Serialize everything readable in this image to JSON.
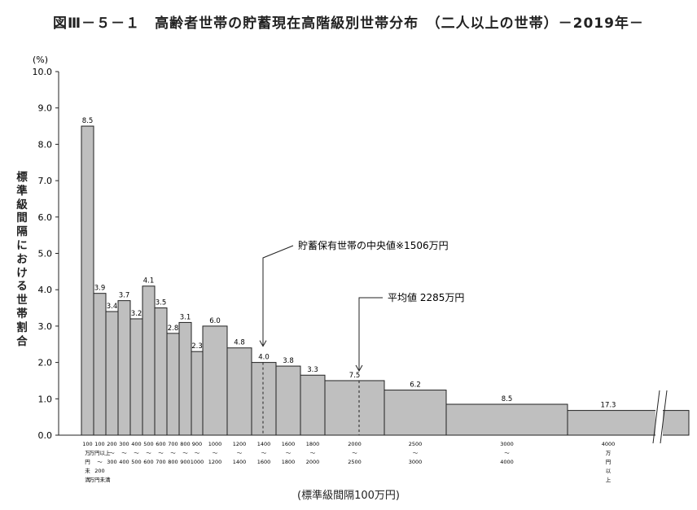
{
  "header": {
    "title": "図Ⅲ－５－１　高齢者世帯の貯蓄現在高階級別世帯分布　（二人以上の世帯）－2019年－"
  },
  "axis": {
    "y_unit": "(%)",
    "y_title": "標準級間隔における世帯割合",
    "x_title": "(標準級間隔100万円)"
  },
  "annotations": {
    "median": "貯蓄保有世帯の中央値※1506万円",
    "mean": "平均値 2285万円"
  },
  "chart_data": {
    "type": "bar",
    "title": "図Ⅲ－５－１　高齢者世帯の貯蓄現在高階級別世帯分布　（二人以上の世帯）－2019年－",
    "xlabel": "(標準級間隔100万円)",
    "ylabel": "標準級間隔における世帯割合 (%)",
    "ylim": [
      0,
      10
    ],
    "yticks": [
      "0.0",
      "1.0",
      "2.0",
      "3.0",
      "4.0",
      "5.0",
      "6.0",
      "7.0",
      "8.0",
      "9.0",
      "10.0"
    ],
    "x_scale": "in 100万円; broken beyond 4000万円",
    "grid": false,
    "bins": [
      {
        "from": 0,
        "to": 100,
        "value": 8.5,
        "label": "8.5",
        "tick": [
          "100",
          "万",
          "円",
          "未",
          "満"
        ]
      },
      {
        "from": 100,
        "to": 200,
        "value": 3.9,
        "label": "3.9",
        "tick": [
          "100",
          "万円以上",
          "～",
          "200",
          "万円未満"
        ]
      },
      {
        "from": 200,
        "to": 300,
        "value": 3.4,
        "label": "3.4",
        "tick": [
          "200",
          "～",
          "300"
        ]
      },
      {
        "from": 300,
        "to": 400,
        "value": 3.7,
        "label": "3.7",
        "tick": [
          "300",
          "～",
          "400"
        ]
      },
      {
        "from": 400,
        "to": 500,
        "value": 3.2,
        "label": "3.2",
        "tick": [
          "400",
          "～",
          "500"
        ]
      },
      {
        "from": 500,
        "to": 600,
        "value": 4.1,
        "label": "4.1",
        "tick": [
          "500",
          "～",
          "600"
        ]
      },
      {
        "from": 600,
        "to": 700,
        "value": 3.5,
        "label": "3.5",
        "tick": [
          "600",
          "～",
          "700"
        ]
      },
      {
        "from": 700,
        "to": 800,
        "value": 2.8,
        "label": "2.8",
        "tick": [
          "700",
          "～",
          "800"
        ]
      },
      {
        "from": 800,
        "to": 900,
        "value": 3.1,
        "label": "3.1",
        "tick": [
          "800",
          "～",
          "900"
        ]
      },
      {
        "from": 900,
        "to": 1000,
        "value": 2.3,
        "label": "2.3",
        "tick": [
          "900",
          "～",
          "1000"
        ]
      },
      {
        "from": 1000,
        "to": 1200,
        "value": 3.0,
        "label": "6.0",
        "tick": [
          "1000",
          "～",
          "1200"
        ]
      },
      {
        "from": 1200,
        "to": 1400,
        "value": 2.4,
        "label": "4.8",
        "tick": [
          "1200",
          "～",
          "1400"
        ]
      },
      {
        "from": 1400,
        "to": 1600,
        "value": 2.0,
        "label": "4.0",
        "tick": [
          "1400",
          "～",
          "1600"
        ]
      },
      {
        "from": 1600,
        "to": 1800,
        "value": 1.9,
        "label": "3.8",
        "tick": [
          "1600",
          "～",
          "1800"
        ]
      },
      {
        "from": 1800,
        "to": 2000,
        "value": 1.65,
        "label": "3.3",
        "tick": [
          "1800",
          "～",
          "2000"
        ]
      },
      {
        "from": 2000,
        "to": 2500,
        "value": 1.5,
        "label": "7.5",
        "tick": [
          "2000",
          "～",
          "2500"
        ]
      },
      {
        "from": 2500,
        "to": 3000,
        "value": 1.24,
        "label": "6.2",
        "tick": [
          "2500",
          "～",
          "3000"
        ]
      },
      {
        "from": 3000,
        "to": 4000,
        "value": 0.85,
        "label": "8.5",
        "tick": [
          "3000",
          "～",
          "4000"
        ]
      },
      {
        "from": 4000,
        "to": null,
        "value": 0.68,
        "label": "17.3",
        "tick": [
          "4000",
          "万",
          "円",
          "以",
          "上"
        ]
      }
    ],
    "median": 1506,
    "mean": 2285,
    "colors": {
      "bar_fill": "#bfbfbf",
      "bar_stroke": "#222222"
    }
  }
}
